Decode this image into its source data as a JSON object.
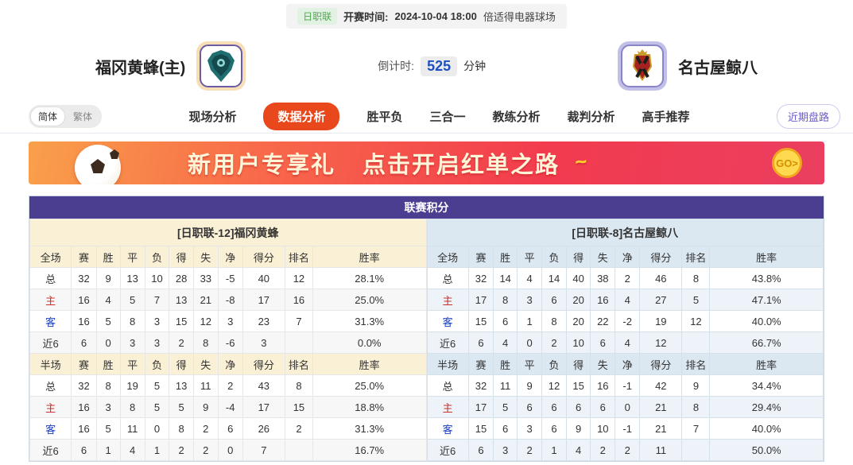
{
  "top_bar": {
    "league": "日职联",
    "kickoff_label": "开赛时间:",
    "kickoff_time": "2024-10-04 18:00",
    "venue": "倍适得电器球场"
  },
  "header": {
    "home_team": "福冈黄蜂(主)",
    "away_team": "名古屋鲸八",
    "countdown_label": "倒计时:",
    "countdown_value": "525",
    "countdown_unit": "分钟"
  },
  "nav": {
    "lang_simplified": "简体",
    "lang_traditional": "繁体",
    "tabs": [
      {
        "label": "现场分析",
        "active": false
      },
      {
        "label": "数据分析",
        "active": true
      },
      {
        "label": "胜平负",
        "active": false
      },
      {
        "label": "三合一",
        "active": false
      },
      {
        "label": "教练分析",
        "active": false
      },
      {
        "label": "裁判分析",
        "active": false
      },
      {
        "label": "高手推荐",
        "active": false
      }
    ],
    "recent_trends": "近期盘路"
  },
  "banner": {
    "text1": "新用户专享礼",
    "text2": "点击开启红单之路",
    "go_label": "GO>"
  },
  "colors": {
    "accent_tab": "#e8481c",
    "table_header_purple": "#4b3e91",
    "home_tint": "#faf0d5",
    "away_tint": "#dce8f1",
    "home_row_label": "#c9302c",
    "away_row_label": "#1b3fbf"
  },
  "league_table": {
    "section_title": "联赛积分",
    "full_headers": [
      "全场",
      "赛",
      "胜",
      "平",
      "负",
      "得",
      "失",
      "净",
      "得分",
      "排名",
      "胜率"
    ],
    "half_headers": [
      "半场",
      "赛",
      "胜",
      "平",
      "负",
      "得",
      "失",
      "净",
      "得分",
      "排名",
      "胜率"
    ],
    "teams": [
      {
        "title": "[日职联-12]福冈黄蜂",
        "side": "home",
        "full_rows": [
          {
            "label": "总",
            "color": "#333333",
            "values": [
              "32",
              "9",
              "13",
              "10",
              "28",
              "33",
              "-5",
              "40",
              "12",
              "28.1%"
            ]
          },
          {
            "label": "主",
            "color": "#c9302c",
            "values": [
              "16",
              "4",
              "5",
              "7",
              "13",
              "21",
              "-8",
              "17",
              "16",
              "25.0%"
            ]
          },
          {
            "label": "客",
            "color": "#1b3fbf",
            "values": [
              "16",
              "5",
              "8",
              "3",
              "15",
              "12",
              "3",
              "23",
              "7",
              "31.3%"
            ]
          },
          {
            "label": "近6",
            "color": "#333333",
            "values": [
              "6",
              "0",
              "3",
              "3",
              "2",
              "8",
              "-6",
              "3",
              "",
              "0.0%"
            ]
          }
        ],
        "half_rows": [
          {
            "label": "总",
            "color": "#333333",
            "values": [
              "32",
              "8",
              "19",
              "5",
              "13",
              "11",
              "2",
              "43",
              "8",
              "25.0%"
            ]
          },
          {
            "label": "主",
            "color": "#c9302c",
            "values": [
              "16",
              "3",
              "8",
              "5",
              "5",
              "9",
              "-4",
              "17",
              "15",
              "18.8%"
            ]
          },
          {
            "label": "客",
            "color": "#1b3fbf",
            "values": [
              "16",
              "5",
              "11",
              "0",
              "8",
              "2",
              "6",
              "26",
              "2",
              "31.3%"
            ]
          },
          {
            "label": "近6",
            "color": "#333333",
            "values": [
              "6",
              "1",
              "4",
              "1",
              "2",
              "2",
              "0",
              "7",
              "",
              "16.7%"
            ]
          }
        ]
      },
      {
        "title": "[日职联-8]名古屋鲸八",
        "side": "away",
        "full_rows": [
          {
            "label": "总",
            "color": "#333333",
            "values": [
              "32",
              "14",
              "4",
              "14",
              "40",
              "38",
              "2",
              "46",
              "8",
              "43.8%"
            ]
          },
          {
            "label": "主",
            "color": "#c9302c",
            "values": [
              "17",
              "8",
              "3",
              "6",
              "20",
              "16",
              "4",
              "27",
              "5",
              "47.1%"
            ]
          },
          {
            "label": "客",
            "color": "#1b3fbf",
            "values": [
              "15",
              "6",
              "1",
              "8",
              "20",
              "22",
              "-2",
              "19",
              "12",
              "40.0%"
            ]
          },
          {
            "label": "近6",
            "color": "#333333",
            "values": [
              "6",
              "4",
              "0",
              "2",
              "10",
              "6",
              "4",
              "12",
              "",
              "66.7%"
            ]
          }
        ],
        "half_rows": [
          {
            "label": "总",
            "color": "#333333",
            "values": [
              "32",
              "11",
              "9",
              "12",
              "15",
              "16",
              "-1",
              "42",
              "9",
              "34.4%"
            ]
          },
          {
            "label": "主",
            "color": "#c9302c",
            "values": [
              "17",
              "5",
              "6",
              "6",
              "6",
              "6",
              "0",
              "21",
              "8",
              "29.4%"
            ]
          },
          {
            "label": "客",
            "color": "#1b3fbf",
            "values": [
              "15",
              "6",
              "3",
              "6",
              "9",
              "10",
              "-1",
              "21",
              "7",
              "40.0%"
            ]
          },
          {
            "label": "近6",
            "color": "#333333",
            "values": [
              "6",
              "3",
              "2",
              "1",
              "4",
              "2",
              "2",
              "11",
              "",
              "50.0%"
            ]
          }
        ]
      }
    ]
  }
}
